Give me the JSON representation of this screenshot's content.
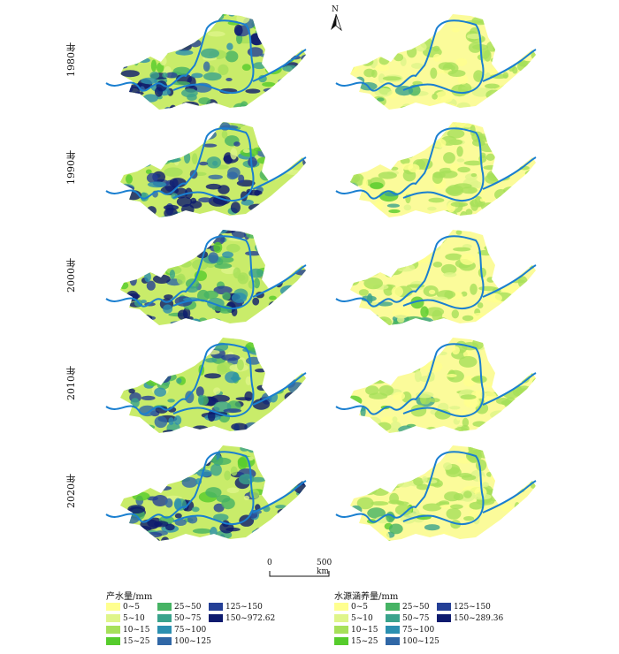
{
  "north_label": "N",
  "years": [
    "1980年",
    "1990年",
    "2000年",
    "2010年",
    "2020年"
  ],
  "scale": {
    "start": "0",
    "end": "500 km"
  },
  "legends": [
    {
      "title": "产水量/mm",
      "items": [
        {
          "label": "0~5",
          "color": "#ffff8f"
        },
        {
          "label": "5~10",
          "color": "#dff58a"
        },
        {
          "label": "10~15",
          "color": "#a6e05a"
        },
        {
          "label": "15~25",
          "color": "#56cc2c"
        },
        {
          "label": "25~50",
          "color": "#46b364"
        },
        {
          "label": "50~75",
          "color": "#3aa38c"
        },
        {
          "label": "75~100",
          "color": "#2b8fb0"
        },
        {
          "label": "100~125",
          "color": "#3067a6"
        },
        {
          "label": "125~150",
          "color": "#243f96"
        },
        {
          "label": "150~972.62",
          "color": "#0d1a6e"
        }
      ]
    },
    {
      "title": "水源涵养量/mm",
      "items": [
        {
          "label": "0~5",
          "color": "#ffff8f"
        },
        {
          "label": "5~10",
          "color": "#dff58a"
        },
        {
          "label": "10~15",
          "color": "#a6e05a"
        },
        {
          "label": "15~25",
          "color": "#56cc2c"
        },
        {
          "label": "25~50",
          "color": "#46b364"
        },
        {
          "label": "50~75",
          "color": "#3aa38c"
        },
        {
          "label": "75~100",
          "color": "#2b8fb0"
        },
        {
          "label": "100~125",
          "color": "#3067a6"
        },
        {
          "label": "125~150",
          "color": "#243f96"
        },
        {
          "label": "150~289.36",
          "color": "#0d1a6e"
        }
      ]
    }
  ],
  "river_color": "#1a7fd0"
}
